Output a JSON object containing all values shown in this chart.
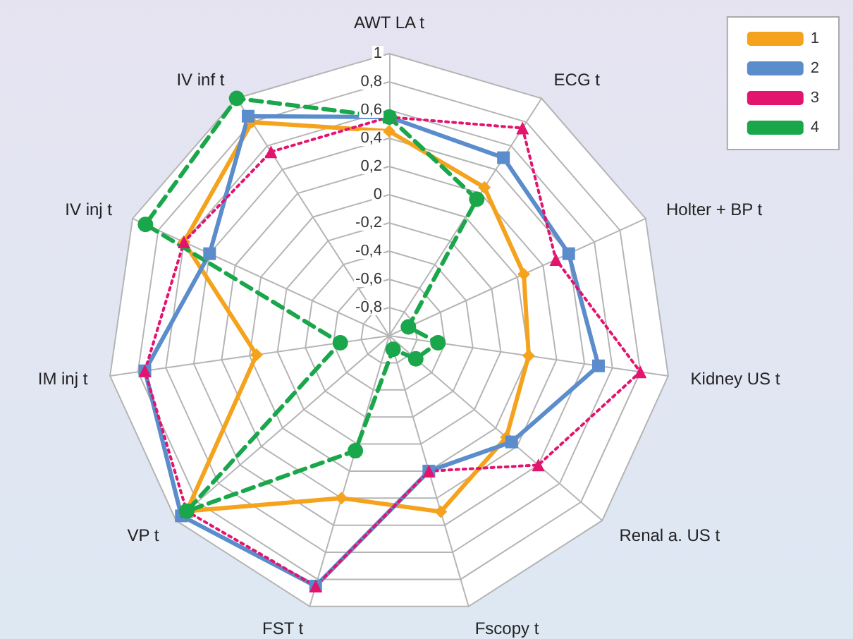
{
  "chart_data": {
    "type": "radar",
    "categories": [
      "AWT LA t",
      "ECG t",
      "Holter + BP t",
      "Kidney US t",
      "Renal a. US t",
      "Fscopy t",
      "FST t",
      "VP t",
      "IM inj t",
      "IV inj t",
      "IV inf t"
    ],
    "series": [
      {
        "name": "1",
        "color": "#f5a21c",
        "marker": "diamond",
        "line_style": "solid",
        "values": [
          0.45,
          0.25,
          0.05,
          0,
          0.1,
          0.3,
          0.2,
          0.9,
          -0.05,
          0.6,
          0.8
        ]
      },
      {
        "name": "2",
        "color": "#5b8ccb",
        "marker": "square",
        "line_style": "solid",
        "values": [
          0.55,
          0.5,
          0.4,
          0.5,
          0.15,
          0,
          0.85,
          0.95,
          0.75,
          0.4,
          0.85
        ]
      },
      {
        "name": "3",
        "color": "#e2146e",
        "marker": "triangle",
        "line_style": "dotted",
        "values": [
          0.55,
          0.75,
          0.3,
          0.8,
          0.4,
          0,
          0.85,
          0.9,
          0.75,
          0.6,
          0.55
        ]
      },
      {
        "name": "4",
        "color": "#1aa64a",
        "marker": "circle",
        "line_style": "dashed",
        "values": [
          0.55,
          0.15,
          -0.85,
          -0.65,
          -0.75,
          -0.9,
          -0.15,
          0.9,
          -0.65,
          0.9,
          1
        ]
      }
    ],
    "ylim": [
      -1,
      1
    ],
    "yticks": [
      {
        "value": -0.8,
        "label": "-0,8"
      },
      {
        "value": -0.6,
        "label": "-0,6"
      },
      {
        "value": -0.4,
        "label": "-0,4"
      },
      {
        "value": -0.2,
        "label": "-0,2"
      },
      0,
      {
        "value": 0.2,
        "label": "0,2"
      },
      {
        "value": 0.4,
        "label": "0,4"
      },
      {
        "value": 0.6,
        "label": "0,6"
      },
      {
        "value": 0.8,
        "label": "0,8"
      },
      1
    ],
    "legend": "top right"
  }
}
